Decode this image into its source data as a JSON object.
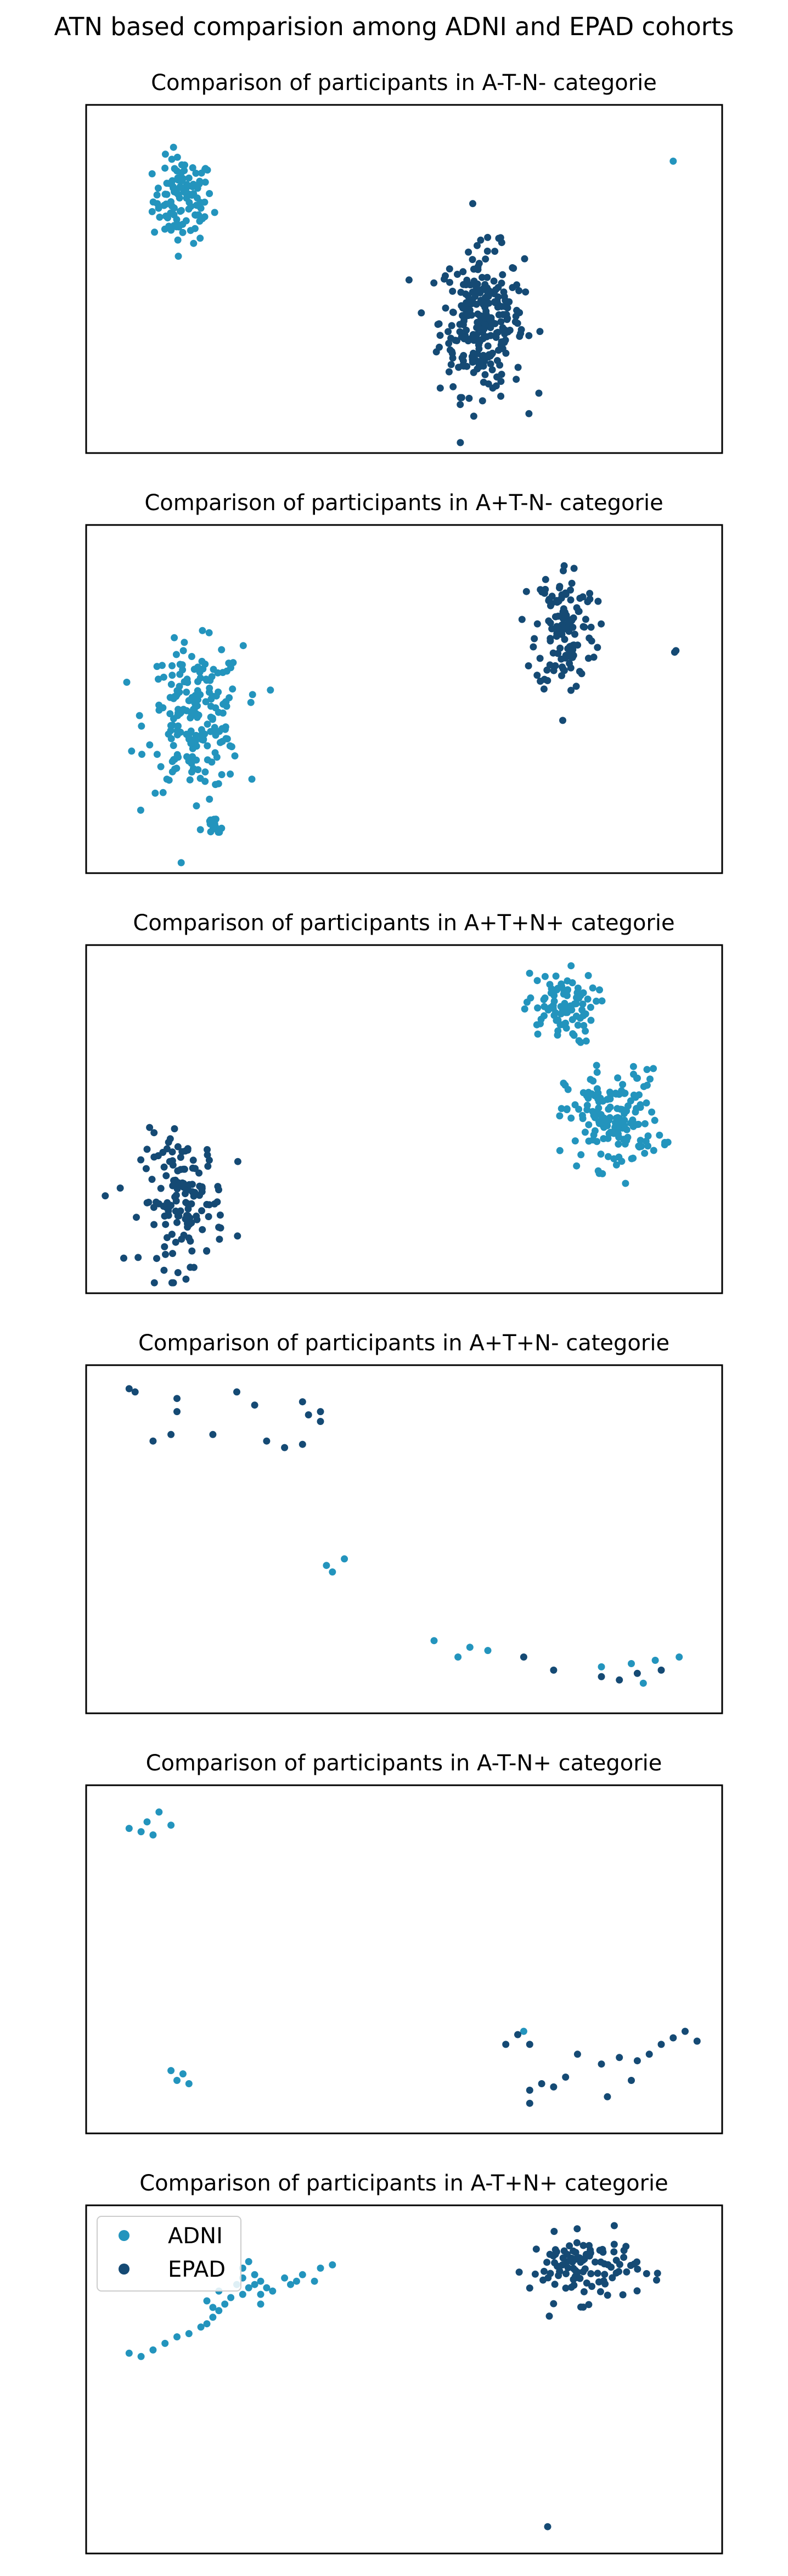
{
  "suptitle": "ATN based comparision among ADNI and EPAD cohorts",
  "colors": {
    "ADNI": "#2394bd",
    "EPAD": "#154a74"
  },
  "legend": {
    "entries": [
      "ADNI",
      "EPAD"
    ],
    "loc": "upper-left"
  },
  "chart_data": [
    {
      "type": "scatter",
      "title": "Comparison of participants in A-T-N- categorie",
      "series": [
        {
          "name": "ADNI",
          "clusters": [
            {
              "cx": 0.13,
              "cy": 0.74,
              "rx": 0.05,
              "ry": 0.13,
              "n": 110
            },
            {
              "cx": 0.95,
              "cy": 0.86,
              "rx": 0.0,
              "ry": 0.0,
              "n": 1
            }
          ]
        },
        {
          "name": "EPAD",
          "clusters": [
            {
              "cx": 0.63,
              "cy": 0.37,
              "rx": 0.07,
              "ry": 0.22,
              "n": 270
            }
          ]
        }
      ]
    },
    {
      "type": "scatter",
      "title": "Comparison of participants in A+T-N- categorie",
      "series": [
        {
          "name": "ADNI",
          "clusters": [
            {
              "cx": 0.15,
              "cy": 0.44,
              "rx": 0.08,
              "ry": 0.22,
              "n": 200
            },
            {
              "cx": 0.18,
              "cy": 0.1,
              "rx": 0.02,
              "ry": 0.04,
              "n": 15
            }
          ]
        },
        {
          "name": "EPAD",
          "clusters": [
            {
              "cx": 0.77,
              "cy": 0.72,
              "rx": 0.05,
              "ry": 0.2,
              "n": 130
            },
            {
              "cx": 0.95,
              "cy": 0.65,
              "rx": 0.005,
              "ry": 0.01,
              "n": 2
            }
          ]
        }
      ]
    },
    {
      "type": "scatter",
      "title": "Comparison of participants in A+T+N+ categorie",
      "series": [
        {
          "name": "ADNI",
          "clusters": [
            {
              "cx": 0.76,
              "cy": 0.84,
              "rx": 0.06,
              "ry": 0.11,
              "n": 90
            },
            {
              "cx": 0.85,
              "cy": 0.5,
              "rx": 0.08,
              "ry": 0.15,
              "n": 160
            }
          ]
        },
        {
          "name": "EPAD",
          "clusters": [
            {
              "cx": 0.13,
              "cy": 0.25,
              "rx": 0.07,
              "ry": 0.2,
              "n": 140
            }
          ]
        }
      ]
    },
    {
      "type": "scatter",
      "title": "Comparison of participants in A+T+N- categorie",
      "series": [
        {
          "name": "ADNI",
          "points": [
            [
              0.37,
              0.42
            ],
            [
              0.38,
              0.4
            ],
            [
              0.4,
              0.44
            ],
            [
              0.55,
              0.19
            ],
            [
              0.59,
              0.14
            ],
            [
              0.61,
              0.17
            ],
            [
              0.64,
              0.16
            ],
            [
              0.83,
              0.11
            ],
            [
              0.88,
              0.12
            ],
            [
              0.92,
              0.13
            ],
            [
              0.96,
              0.14
            ],
            [
              0.9,
              0.06
            ]
          ]
        },
        {
          "name": "EPAD",
          "points": [
            [
              0.04,
              0.96
            ],
            [
              0.05,
              0.95
            ],
            [
              0.12,
              0.93
            ],
            [
              0.22,
              0.95
            ],
            [
              0.25,
              0.91
            ],
            [
              0.33,
              0.92
            ],
            [
              0.12,
              0.89
            ],
            [
              0.08,
              0.8
            ],
            [
              0.11,
              0.82
            ],
            [
              0.18,
              0.82
            ],
            [
              0.27,
              0.8
            ],
            [
              0.3,
              0.78
            ],
            [
              0.33,
              0.79
            ],
            [
              0.34,
              0.88
            ],
            [
              0.36,
              0.89
            ],
            [
              0.36,
              0.86
            ],
            [
              0.7,
              0.14
            ],
            [
              0.75,
              0.1
            ],
            [
              0.83,
              0.08
            ],
            [
              0.86,
              0.07
            ],
            [
              0.89,
              0.09
            ],
            [
              0.93,
              0.1
            ]
          ]
        }
      ]
    },
    {
      "type": "scatter",
      "title": "Comparison of participants in A-T-N+ categorie",
      "series": [
        {
          "name": "ADNI",
          "points": [
            [
              0.04,
              0.9
            ],
            [
              0.06,
              0.89
            ],
            [
              0.07,
              0.92
            ],
            [
              0.08,
              0.88
            ],
            [
              0.09,
              0.95
            ],
            [
              0.11,
              0.91
            ],
            [
              0.11,
              0.16
            ],
            [
              0.12,
              0.13
            ],
            [
              0.13,
              0.15
            ],
            [
              0.14,
              0.12
            ],
            [
              0.7,
              0.28
            ]
          ]
        },
        {
          "name": "EPAD",
          "points": [
            [
              0.67,
              0.24
            ],
            [
              0.69,
              0.27
            ],
            [
              0.71,
              0.24
            ],
            [
              0.71,
              0.1
            ],
            [
              0.71,
              0.06
            ],
            [
              0.73,
              0.12
            ],
            [
              0.75,
              0.11
            ],
            [
              0.77,
              0.14
            ],
            [
              0.79,
              0.21
            ],
            [
              0.83,
              0.18
            ],
            [
              0.84,
              0.08
            ],
            [
              0.86,
              0.2
            ],
            [
              0.88,
              0.13
            ],
            [
              0.89,
              0.19
            ],
            [
              0.91,
              0.21
            ],
            [
              0.93,
              0.24
            ],
            [
              0.95,
              0.26
            ],
            [
              0.97,
              0.28
            ],
            [
              0.99,
              0.25
            ]
          ]
        }
      ]
    },
    {
      "type": "scatter",
      "title": "Comparison of participants in A-T+N+ categorie",
      "series": [
        {
          "name": "ADNI",
          "points": [
            [
              0.04,
              0.58
            ],
            [
              0.06,
              0.57
            ],
            [
              0.08,
              0.59
            ],
            [
              0.1,
              0.61
            ],
            [
              0.12,
              0.63
            ],
            [
              0.14,
              0.64
            ],
            [
              0.16,
              0.66
            ],
            [
              0.17,
              0.67
            ],
            [
              0.18,
              0.69
            ],
            [
              0.19,
              0.71
            ],
            [
              0.17,
              0.74
            ],
            [
              0.18,
              0.72
            ],
            [
              0.19,
              0.77
            ],
            [
              0.2,
              0.73
            ],
            [
              0.21,
              0.75
            ],
            [
              0.23,
              0.76
            ],
            [
              0.24,
              0.78
            ],
            [
              0.22,
              0.79
            ],
            [
              0.23,
              0.81
            ],
            [
              0.25,
              0.79
            ],
            [
              0.26,
              0.8
            ],
            [
              0.25,
              0.82
            ],
            [
              0.23,
              0.84
            ],
            [
              0.24,
              0.86
            ],
            [
              0.26,
              0.76
            ],
            [
              0.3,
              0.81
            ],
            [
              0.31,
              0.79
            ],
            [
              0.32,
              0.8
            ],
            [
              0.33,
              0.82
            ],
            [
              0.35,
              0.8
            ],
            [
              0.27,
              0.78
            ],
            [
              0.28,
              0.77
            ],
            [
              0.26,
              0.73
            ],
            [
              0.36,
              0.84
            ],
            [
              0.38,
              0.85
            ]
          ]
        },
        {
          "name": "EPAD",
          "clusters": [
            {
              "cx": 0.8,
              "cy": 0.84,
              "rx": 0.09,
              "ry": 0.1,
              "n": 110
            },
            {
              "cx": 0.74,
              "cy": 0.05,
              "rx": 0.0,
              "ry": 0.0,
              "n": 1
            }
          ]
        }
      ]
    }
  ]
}
